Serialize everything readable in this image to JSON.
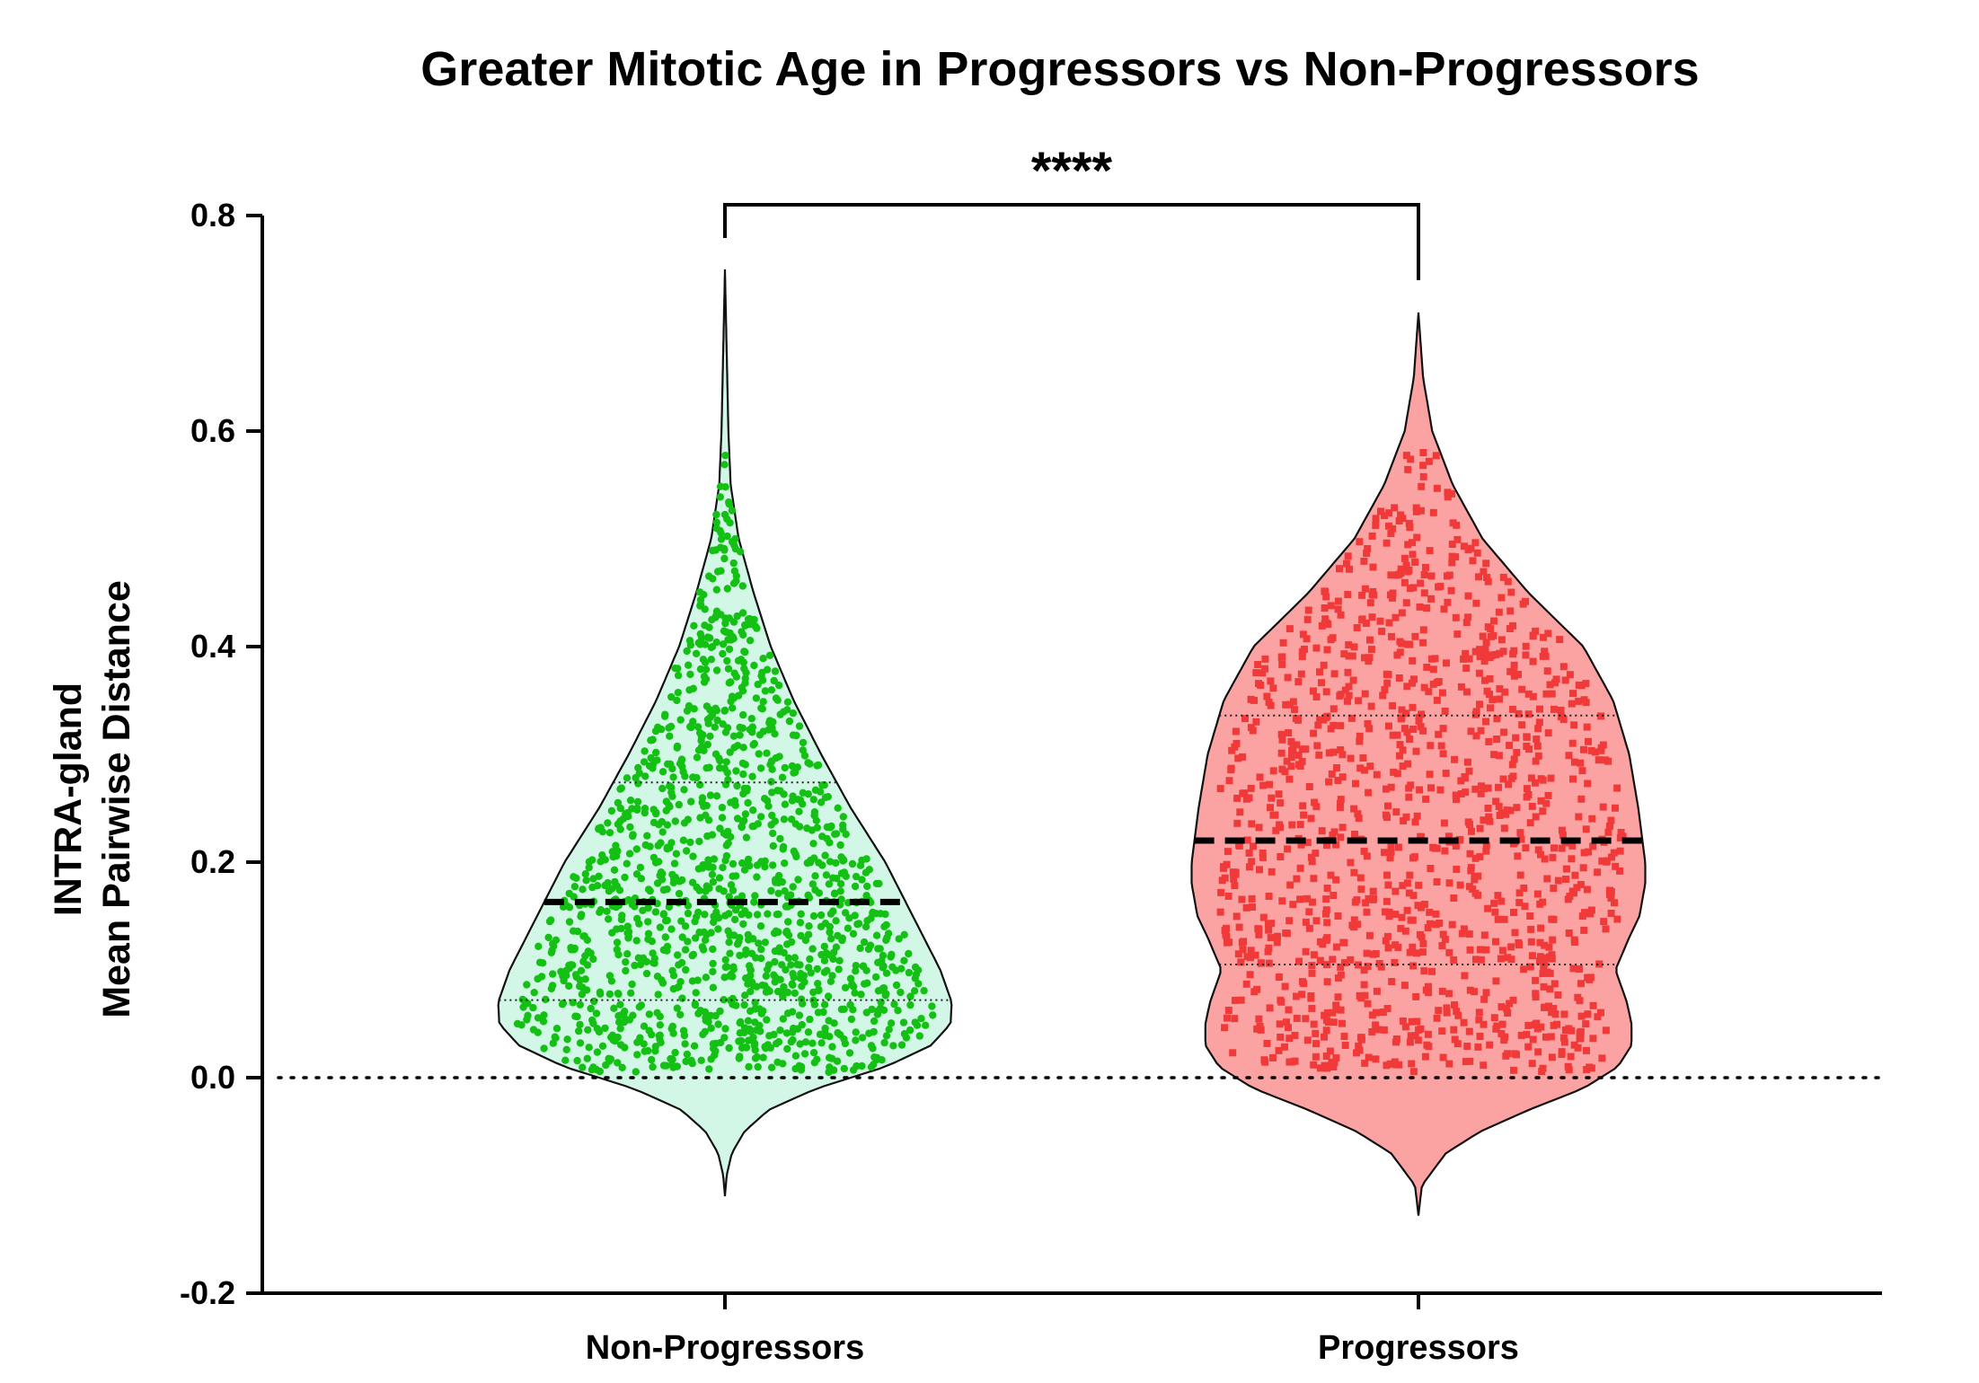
{
  "chart_data": {
    "type": "violin",
    "title": "Greater Mitotic Age in Progressors vs Non-Progressors",
    "ylabel_lines": [
      "INTRA-gland",
      "Mean Pairwise Distance"
    ],
    "ylim": [
      -0.2,
      0.8
    ],
    "yticks": [
      {
        "value": -0.2,
        "label": "-0.2"
      },
      {
        "value": 0.0,
        "label": "0.0"
      },
      {
        "value": 0.2,
        "label": "0.2"
      },
      {
        "value": 0.4,
        "label": "0.4"
      },
      {
        "value": 0.6,
        "label": "0.6"
      },
      {
        "value": 0.8,
        "label": "0.8"
      }
    ],
    "reference_line": {
      "y": 0.0,
      "style": "dotted"
    },
    "significance": {
      "label": "****",
      "between": [
        "Non-Progressors",
        "Progressors"
      ]
    },
    "groups": [
      {
        "name": "Non-Progressors",
        "fill": "#d2f7e6",
        "point_color": "#13c013",
        "point_shape": "circle",
        "median": 0.163,
        "q1": 0.072,
        "q3": 0.274,
        "range": [
          -0.11,
          0.75
        ],
        "point_range": [
          0.005,
          0.64
        ],
        "n_points_approx": 2500,
        "half_width_profile": [
          [
            -0.11,
            0.0
          ],
          [
            -0.09,
            0.008
          ],
          [
            -0.07,
            0.03
          ],
          [
            -0.05,
            0.085
          ],
          [
            -0.03,
            0.19
          ],
          [
            -0.01,
            0.4
          ],
          [
            0.01,
            0.7
          ],
          [
            0.03,
            0.9
          ],
          [
            0.05,
            0.985
          ],
          [
            0.07,
            0.99
          ],
          [
            0.1,
            0.94
          ],
          [
            0.15,
            0.82
          ],
          [
            0.2,
            0.7
          ],
          [
            0.25,
            0.55
          ],
          [
            0.3,
            0.42
          ],
          [
            0.35,
            0.3
          ],
          [
            0.4,
            0.2
          ],
          [
            0.45,
            0.125
          ],
          [
            0.5,
            0.06
          ],
          [
            0.55,
            0.025
          ],
          [
            0.6,
            0.015
          ],
          [
            0.65,
            0.01
          ],
          [
            0.7,
            0.005
          ],
          [
            0.75,
            0.0
          ]
        ]
      },
      {
        "name": "Progressors",
        "fill": "#fba3a3",
        "point_color": "#f03a3a",
        "point_shape": "square",
        "median": 0.22,
        "q1": 0.105,
        "q3": 0.336,
        "range": [
          -0.128,
          0.71
        ],
        "point_range": [
          0.005,
          0.585
        ],
        "n_points_approx": 2200,
        "half_width_profile": [
          [
            -0.128,
            0.0
          ],
          [
            -0.1,
            0.015
          ],
          [
            -0.07,
            0.12
          ],
          [
            -0.05,
            0.27
          ],
          [
            -0.03,
            0.48
          ],
          [
            -0.01,
            0.72
          ],
          [
            0.01,
            0.87
          ],
          [
            0.03,
            0.93
          ],
          [
            0.05,
            0.93
          ],
          [
            0.07,
            0.91
          ],
          [
            0.1,
            0.86
          ],
          [
            0.13,
            0.92
          ],
          [
            0.15,
            0.965
          ],
          [
            0.18,
            0.99
          ],
          [
            0.2,
            0.99
          ],
          [
            0.25,
            0.96
          ],
          [
            0.3,
            0.92
          ],
          [
            0.35,
            0.85
          ],
          [
            0.4,
            0.72
          ],
          [
            0.45,
            0.48
          ],
          [
            0.5,
            0.28
          ],
          [
            0.55,
            0.15
          ],
          [
            0.6,
            0.06
          ],
          [
            0.65,
            0.02
          ],
          [
            0.71,
            0.0
          ]
        ]
      }
    ]
  }
}
